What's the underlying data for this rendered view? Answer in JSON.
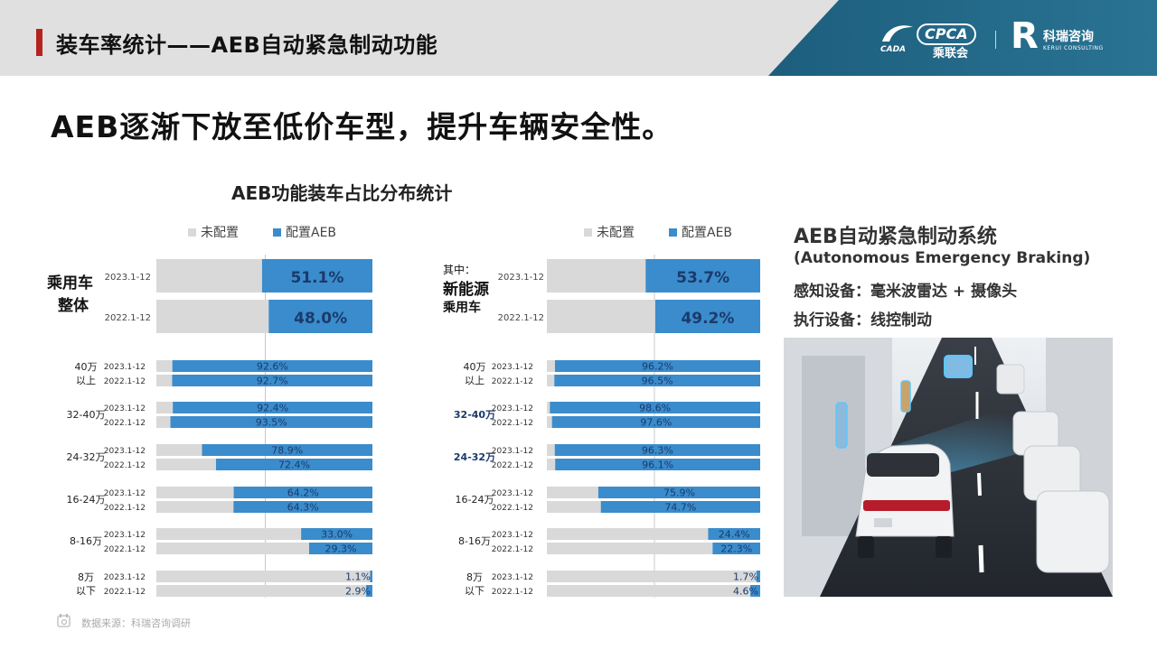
{
  "header": {
    "title": "装车率统计——AEB自动紧急制动功能",
    "logo_cpca_mark": "CADA",
    "logo_cpca_text": "CPCA",
    "logo_cpca_cn": "乘联会",
    "logo_kr_mark": "R",
    "logo_kr_cn": "科瑞咨询",
    "logo_kr_en": "KERUI CONSULTING"
  },
  "headline": "AEB逐渐下放至低价车型，提升车辆安全性。",
  "chart_title": "AEB功能装车占比分布统计",
  "colors": {
    "unconfigured": "#d9d9d9",
    "aeb": "#3a8ccc",
    "aeb_dark": "#2a6fa8",
    "label_dark": "#1b3a6b",
    "accent_red": "#b4231f",
    "header_blue": "#1d5e7d"
  },
  "chart_data": [
    {
      "type": "bar",
      "orientation": "horizontal-stacked-100",
      "legend": [
        "未配置",
        "配置AEB"
      ],
      "legend_placement": "top",
      "series": [
        {
          "name": "未配置",
          "color": "#d9d9d9"
        },
        {
          "name": "配置AEB",
          "color": "#3a8ccc"
        }
      ],
      "overall_label": "乘用车整体",
      "overall": [
        {
          "period": "2023.1-12",
          "aeb": 51.1,
          "label": "51.1%"
        },
        {
          "period": "2022.1-12",
          "aeb": 48.0,
          "label": "48.0%"
        }
      ],
      "groups": [
        {
          "label": "40万以上",
          "rows": [
            {
              "period": "2023.1-12",
              "aeb": 92.6,
              "label": "92.6%"
            },
            {
              "period": "2022.1-12",
              "aeb": 92.7,
              "label": "92.7%"
            }
          ]
        },
        {
          "label": "32-40万",
          "rows": [
            {
              "period": "2023.1-12",
              "aeb": 92.4,
              "label": "92.4%"
            },
            {
              "period": "2022.1-12",
              "aeb": 93.5,
              "label": "93.5%"
            }
          ]
        },
        {
          "label": "24-32万",
          "rows": [
            {
              "period": "2023.1-12",
              "aeb": 78.9,
              "label": "78.9%"
            },
            {
              "period": "2022.1-12",
              "aeb": 72.4,
              "label": "72.4%"
            }
          ]
        },
        {
          "label": "16-24万",
          "rows": [
            {
              "period": "2023.1-12",
              "aeb": 64.2,
              "label": "64.2%"
            },
            {
              "period": "2022.1-12",
              "aeb": 64.3,
              "label": "64.3%"
            }
          ]
        },
        {
          "label": "8-16万",
          "rows": [
            {
              "period": "2023.1-12",
              "aeb": 33.0,
              "label": "33.0%"
            },
            {
              "period": "2022.1-12",
              "aeb": 29.3,
              "label": "29.3%"
            }
          ]
        },
        {
          "label": "8万以下",
          "rows": [
            {
              "period": "2023.1-12",
              "aeb": 1.1,
              "label": "1.1%"
            },
            {
              "period": "2022.1-12",
              "aeb": 2.9,
              "label": "2.9%"
            }
          ]
        }
      ]
    },
    {
      "type": "bar",
      "orientation": "horizontal-stacked-100",
      "legend": [
        "未配置",
        "配置AEB"
      ],
      "legend_placement": "top",
      "series": [
        {
          "name": "未配置",
          "color": "#d9d9d9"
        },
        {
          "name": "配置AEB",
          "color": "#3a8ccc"
        }
      ],
      "overall_label_prefix": "其中：",
      "overall_label": "新能源乘用车",
      "overall_label_line2": "新能源",
      "overall_label_line3": "乘用车",
      "overall": [
        {
          "period": "2023.1-12",
          "aeb": 53.7,
          "label": "53.7%"
        },
        {
          "period": "2022.1-12",
          "aeb": 49.2,
          "label": "49.2%"
        }
      ],
      "groups": [
        {
          "label": "40万以上",
          "rows": [
            {
              "period": "2023.1-12",
              "aeb": 96.2,
              "label": "96.2%"
            },
            {
              "period": "2022.1-12",
              "aeb": 96.5,
              "label": "96.5%"
            }
          ]
        },
        {
          "label": "32-40万",
          "rows": [
            {
              "period": "2023.1-12",
              "aeb": 98.6,
              "label": "98.6%"
            },
            {
              "period": "2022.1-12",
              "aeb": 97.6,
              "label": "97.6%"
            }
          ]
        },
        {
          "label": "24-32万",
          "rows": [
            {
              "period": "2023.1-12",
              "aeb": 96.3,
              "label": "96.3%"
            },
            {
              "period": "2022.1-12",
              "aeb": 96.1,
              "label": "96.1%"
            }
          ]
        },
        {
          "label": "16-24万",
          "rows": [
            {
              "period": "2023.1-12",
              "aeb": 75.9,
              "label": "75.9%"
            },
            {
              "period": "2022.1-12",
              "aeb": 74.7,
              "label": "74.7%"
            }
          ]
        },
        {
          "label": "8-16万",
          "rows": [
            {
              "period": "2023.1-12",
              "aeb": 24.4,
              "label": "24.4%"
            },
            {
              "period": "2022.1-12",
              "aeb": 22.3,
              "label": "22.3%"
            }
          ]
        },
        {
          "label": "8万以下",
          "rows": [
            {
              "period": "2023.1-12",
              "aeb": 1.7,
              "label": "1.7%"
            },
            {
              "period": "2022.1-12",
              "aeb": 4.6,
              "label": "4.6%"
            }
          ]
        }
      ]
    }
  ],
  "panel": {
    "heading": "AEB自动紧急制动系统",
    "subheading": "(Autonomous Emergency Braking)",
    "sensing": "感知设备：毫米波雷达 + 摄像头",
    "actuation": "执行设备：线控制动"
  },
  "footer": {
    "source": "数据来源：科瑞咨询调研"
  }
}
